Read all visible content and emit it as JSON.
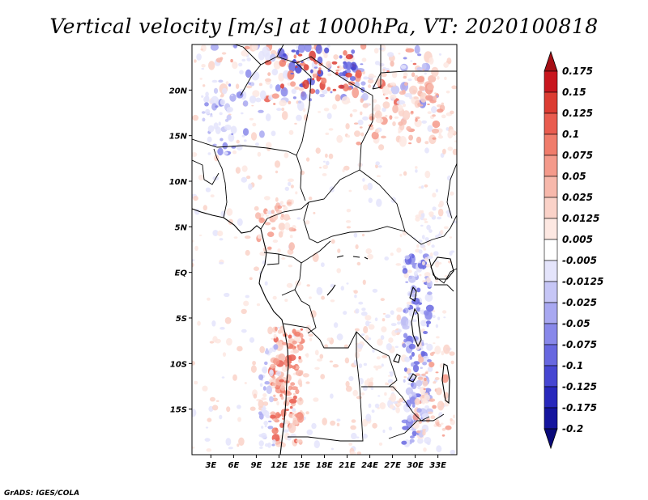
{
  "chart_data": {
    "type": "heatmap",
    "title": "Vertical velocity [m/s] at 1000hPa, VT: 2020100818",
    "variable": "Vertical velocity",
    "units": "m/s",
    "level": "1000hPa",
    "valid_time": "2020100818",
    "x_ticks": [
      "3E",
      "6E",
      "9E",
      "12E",
      "15E",
      "18E",
      "21E",
      "24E",
      "27E",
      "30E",
      "33E"
    ],
    "x_tick_values": [
      3,
      6,
      9,
      12,
      15,
      18,
      21,
      24,
      27,
      30,
      33
    ],
    "y_ticks": [
      "20N",
      "15N",
      "10N",
      "5N",
      "EQ",
      "5S",
      "10S",
      "15S"
    ],
    "y_tick_values": [
      20,
      15,
      10,
      5,
      0,
      -5,
      -10,
      -15
    ],
    "xlim": [
      0.5,
      35.5
    ],
    "ylim": [
      -20,
      25
    ],
    "colorbar": {
      "labels": [
        "0.175",
        "0.15",
        "0.125",
        "0.1",
        "0.075",
        "0.05",
        "0.025",
        "0.0125",
        "0.005",
        "-0.005",
        "-0.0125",
        "-0.025",
        "-0.05",
        "-0.075",
        "-0.1",
        "-0.125",
        "-0.175",
        "-0.2"
      ],
      "colors": [
        "#a50f15",
        "#c8161e",
        "#dc3c32",
        "#e95c4f",
        "#f07c6b",
        "#f49a8b",
        "#f7b8ab",
        "#fad2c8",
        "#fde8e2",
        "#ffffff",
        "#e4e4fb",
        "#c6c6f6",
        "#a8a8f1",
        "#8888ea",
        "#6767e0",
        "#4646d2",
        "#2828bc",
        "#15159e",
        "#0a0a7a"
      ]
    },
    "features": [
      {
        "name": "positive band along Angola/Namibia coast",
        "lon": [
          11,
          15
        ],
        "lat": [
          -19,
          -6
        ],
        "sign": "positive"
      },
      {
        "name": "negative band along African Great Lakes",
        "lon": [
          28.5,
          32
        ],
        "lat": [
          -19,
          2
        ],
        "sign": "negative"
      },
      {
        "name": "mixed strong signal in Libya/Egypt/Chad north",
        "lon": [
          3,
          33
        ],
        "lat": [
          17,
          25
        ],
        "sign": "mixed"
      }
    ]
  },
  "credit": "GrADS: IGES/COLA"
}
